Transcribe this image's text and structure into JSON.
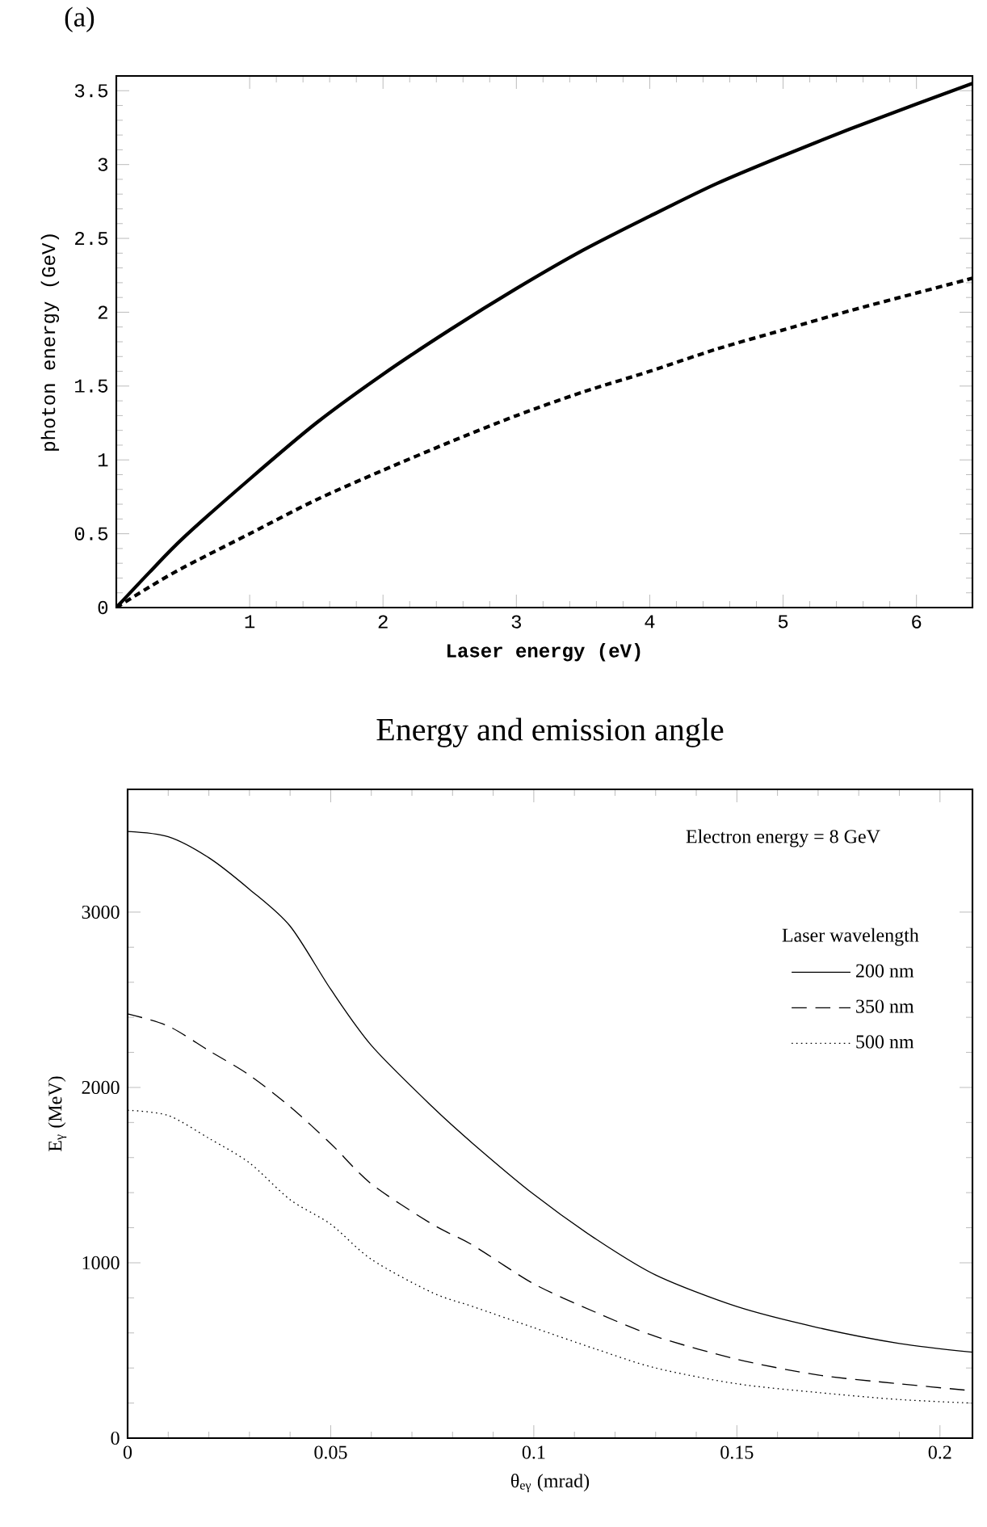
{
  "chart_data": [
    {
      "type": "line",
      "title": "(a)",
      "xlabel": "Laser energy (eV)",
      "ylabel": "photon energy (GeV)",
      "x": [
        0,
        0.25,
        0.5,
        1,
        1.5,
        2,
        2.5,
        3,
        3.5,
        4,
        4.5,
        5,
        5.5,
        6,
        6.42
      ],
      "series": [
        {
          "color": "#000000",
          "line_style": "solid",
          "values": [
            0,
            0.24,
            0.47,
            0.87,
            1.25,
            1.58,
            1.88,
            2.16,
            2.42,
            2.65,
            2.87,
            3.06,
            3.24,
            3.41,
            3.55
          ]
        },
        {
          "color": "#000000",
          "line_style": "dashed",
          "values": [
            0,
            0.14,
            0.27,
            0.5,
            0.73,
            0.93,
            1.12,
            1.3,
            1.46,
            1.6,
            1.75,
            1.88,
            2.01,
            2.13,
            2.23
          ]
        }
      ],
      "xlim": [
        0,
        6.42
      ],
      "ylim": [
        0,
        3.6
      ],
      "xticks": [
        1,
        2,
        3,
        4,
        5,
        6
      ],
      "yticks": [
        0,
        0.5,
        1,
        1.5,
        2,
        2.5,
        3,
        3.5
      ],
      "grid": false,
      "legend": false
    },
    {
      "type": "line",
      "title": "Energy and emission angle",
      "xlabel": "θ$_{eγ}$  (mrad)",
      "ylabel": "E$_{γ}$ (MeV)",
      "legend_title": "Laser wavelength",
      "annotations": [
        "Electron energy = 8 GeV"
      ],
      "x": [
        0,
        0.01,
        0.02,
        0.03,
        0.04,
        0.05,
        0.06,
        0.075,
        0.085,
        0.1,
        0.115,
        0.13,
        0.15,
        0.17,
        0.19,
        0.208
      ],
      "series": [
        {
          "name": "200 nm",
          "color": "#000000",
          "line_style": "solid",
          "values": [
            3460,
            3430,
            3310,
            3130,
            2920,
            2560,
            2240,
            1890,
            1680,
            1390,
            1140,
            930,
            750,
            630,
            540,
            490
          ]
        },
        {
          "name": "350 nm",
          "color": "#000000",
          "line_style": "dashed",
          "values": [
            2420,
            2350,
            2210,
            2070,
            1890,
            1680,
            1450,
            1220,
            1100,
            880,
            720,
            580,
            450,
            360,
            310,
            270
          ]
        },
        {
          "name": "500 nm",
          "color": "#000000",
          "line_style": "dotted",
          "values": [
            1870,
            1840,
            1710,
            1570,
            1360,
            1220,
            1020,
            830,
            750,
            630,
            510,
            400,
            310,
            260,
            220,
            200
          ]
        }
      ],
      "xlim": [
        0,
        0.208
      ],
      "ylim": [
        0,
        3700
      ],
      "xticks": [
        0,
        0.05,
        0.1,
        0.15,
        0.2
      ],
      "yticks": [
        0,
        1000,
        2000,
        3000
      ],
      "grid": false,
      "legend": "top right"
    }
  ]
}
